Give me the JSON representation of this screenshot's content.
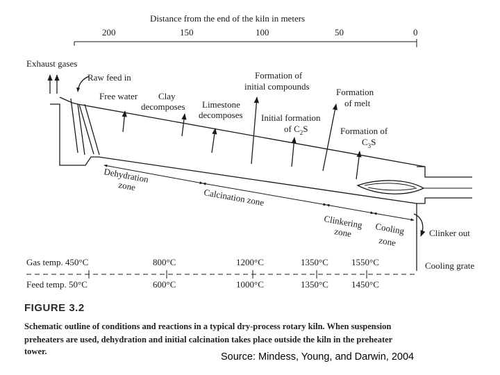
{
  "axis": {
    "title": "Distance from the end of the kiln in meters",
    "ticks": [
      "200",
      "150",
      "100",
      "50",
      "0"
    ]
  },
  "labels": {
    "exhaust_gases": "Exhaust gases",
    "raw_feed_in": "Raw feed in",
    "free_water": "Free water",
    "clay_1": "Clay",
    "clay_2": "decomposes",
    "limestone_1": "Limestone",
    "limestone_2": "decomposes",
    "formation_initial_1": "Formation of",
    "formation_initial_2": "initial compounds",
    "initial_formation_c2s_1": "Initial formation",
    "initial_formation_c2s_2": "of C",
    "initial_formation_c2s_sub": "2",
    "initial_formation_c2s_3": "S",
    "formation_melt_1": "Formation",
    "formation_melt_2": "of melt",
    "formation_c3s_1": "Formation of",
    "formation_c3s_2": "C",
    "formation_c3s_sub": "3",
    "formation_c3s_3": "S",
    "clinker_out": "Clinker out",
    "cooling_grate": "Cooling grate"
  },
  "zones": {
    "dehydration_1": "Dehydration",
    "dehydration_2": "zone",
    "calcination": "Calcination zone",
    "clinkering_1": "Clinkering",
    "clinkering_2": "zone",
    "cooling_1": "Cooling",
    "cooling_2": "zone"
  },
  "temps": {
    "gas_label": "Gas temp. 450°C",
    "gas_values": [
      "800°C",
      "1200°C",
      "1350°C",
      "1550°C"
    ],
    "feed_label": "Feed temp. 50°C",
    "feed_values": [
      "600°C",
      "1000°C",
      "1350°C",
      "1450°C"
    ]
  },
  "figure": {
    "number": "FIGURE 3.2",
    "caption_lines": [
      "Schematic outline of conditions and reactions in a typical dry-process rotary kiln. When suspension",
      "preheaters are used, dehydration and initial calcination takes place outside the kiln in the preheater",
      "tower."
    ],
    "source": "Source: Mindess, Young, and Darwin, 2004"
  }
}
